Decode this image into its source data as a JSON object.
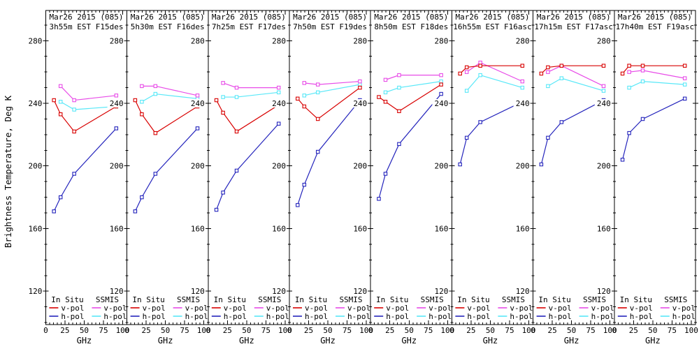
{
  "window": {
    "background": "#ffffff"
  },
  "colors": {
    "axis": "#000000",
    "in_situ_v": "#d80000",
    "in_situ_h": "#2424bc",
    "ssmis_v": "#e84ce8",
    "ssmis_h": "#58e8f8"
  },
  "legend": {
    "col1_header": "In Situ",
    "col2_header": "SSMIS",
    "v_label": "v-pol",
    "h_label": "h-pol"
  },
  "chart_data": {
    "type": "line",
    "xlabel": "GHz",
    "ylabel": "Brightness Temperature, Deg K",
    "xlim": [
      0,
      105
    ],
    "ylim": [
      99,
      299
    ],
    "x_ticks": [
      0,
      25,
      50,
      75,
      100
    ],
    "y_ticks": [
      120,
      160,
      200,
      240,
      280
    ],
    "x_minor_step": 5,
    "y_minor_step": 10,
    "grid": false,
    "legend_position": "bottom-inside-each-panel",
    "in_situ_x_ghz": [
      10.7,
      19.35,
      37.0,
      91.655
    ],
    "ssmis_x_ghz": [
      19.35,
      37.0,
      91.655
    ],
    "series_names": [
      "In Situ v-pol",
      "In Situ h-pol",
      "SSMIS v-pol",
      "SSMIS h-pol"
    ],
    "panels": [
      {
        "title1": "Mar26 2015 (085)",
        "title2": "3h55m EST F15des",
        "in_situ_v": [
          242,
          233,
          222,
          238
        ],
        "in_situ_h": [
          171,
          180,
          195,
          224
        ],
        "ssmis_v": [
          251,
          242,
          245
        ],
        "ssmis_h": [
          241,
          236,
          238
        ]
      },
      {
        "title1": "Mar26 2015 (085)",
        "title2": "5h30m EST F16des",
        "in_situ_v": [
          242,
          233,
          221,
          238
        ],
        "in_situ_h": [
          171,
          180,
          195,
          224
        ],
        "ssmis_v": [
          251,
          251,
          245
        ],
        "ssmis_h": [
          241,
          246,
          243
        ]
      },
      {
        "title1": "Mar26 2015 (085)",
        "title2": "7h25m EST F17des",
        "in_situ_v": [
          242,
          234,
          222,
          239
        ],
        "in_situ_h": [
          172,
          183,
          197,
          227
        ],
        "ssmis_v": [
          253,
          250,
          250
        ],
        "ssmis_h": [
          244,
          244,
          247
        ]
      },
      {
        "title1": "Mar26 2015 (085)",
        "title2": "7h50m EST F19des",
        "in_situ_v": [
          243,
          238,
          230,
          250
        ],
        "in_situ_h": [
          175,
          188,
          209,
          242
        ],
        "ssmis_v": [
          253,
          252,
          254
        ],
        "ssmis_h": [
          245,
          247,
          252
        ]
      },
      {
        "title1": "Mar26 2015 (085)",
        "title2": "8h50m EST F18des",
        "in_situ_v": [
          244,
          241,
          235,
          252
        ],
        "in_situ_h": [
          179,
          195,
          214,
          246
        ],
        "ssmis_v": [
          255,
          258,
          258
        ],
        "ssmis_h": [
          247,
          250,
          254
        ]
      },
      {
        "title1": "Mar26 2015 (085)",
        "title2": "16h55m EST F16asc",
        "in_situ_v": [
          259,
          263,
          264,
          264
        ],
        "in_situ_h": [
          201,
          218,
          228,
          241
        ],
        "ssmis_v": [
          260,
          266,
          254
        ],
        "ssmis_h": [
          248,
          258,
          250
        ]
      },
      {
        "title1": "Mar26 2015 (085)",
        "title2": "17h15m EST F17asc",
        "in_situ_v": [
          259,
          263,
          264,
          264
        ],
        "in_situ_h": [
          201,
          218,
          228,
          242
        ],
        "ssmis_v": [
          260,
          264,
          251
        ],
        "ssmis_h": [
          251,
          256,
          248
        ]
      },
      {
        "title1": "Mar26 2015 (085)",
        "title2": "17h40m EST F19asc",
        "in_situ_v": [
          259,
          264,
          264,
          264
        ],
        "in_situ_h": [
          204,
          221,
          230,
          243
        ],
        "ssmis_v": [
          260,
          261,
          256
        ],
        "ssmis_h": [
          250,
          254,
          252
        ]
      }
    ]
  }
}
